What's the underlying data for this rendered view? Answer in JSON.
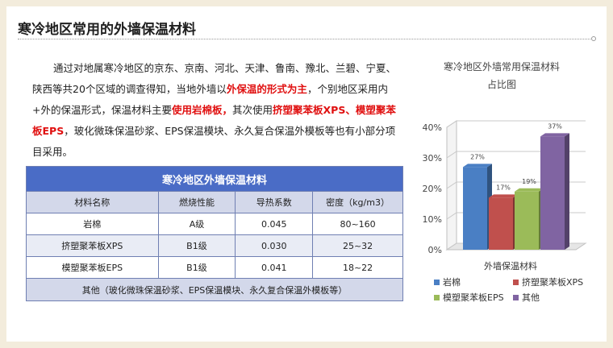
{
  "title": "寒冷地区常用的外墙保温材料",
  "paragraph": {
    "p1": "通过对地属寒冷地区的京东、京南、河北、天津、鲁南、豫北、兰碧、宁夏、陕西等共20个区域的调查得知，当地外墙以",
    "r1": "外保温的形式为主",
    "p2": "，个别地区采用内+外的保温形式，保温材料主要",
    "r2": "使用岩棉板，",
    "p3": "其次使用",
    "r3": "挤塑聚苯板XPS、模塑聚苯板EPS",
    "p4": "，玻化微珠保温砂浆、EPS保温模块、永久复合保温外模板等也有小部分项目采用。"
  },
  "table": {
    "header": "寒冷地区外墙保温材料",
    "columns": [
      "材料名称",
      "燃烧性能",
      "导热系数",
      "密度（kg/m3）"
    ],
    "rows": [
      [
        "岩棉",
        "A级",
        "0.045",
        "80~160"
      ],
      [
        "挤塑聚苯板XPS",
        "B1级",
        "0.030",
        "25~32"
      ],
      [
        "模塑聚苯板EPS",
        "B1级",
        "0.041",
        "18~22"
      ]
    ],
    "footer": "其他（玻化微珠保温砂浆、EPS保温模块、永久复合保温外模板等）"
  },
  "chart_data": {
    "type": "bar",
    "title_line1": "寒冷地区外墙常用保温材料",
    "title_line2": "占比图",
    "xlabel": "外墙保温材料",
    "y_ticks": [
      "0%",
      "10%",
      "20%",
      "30%",
      "40%"
    ],
    "ylim": [
      0,
      40
    ],
    "grid": true,
    "legend_position": "bottom",
    "series": [
      {
        "name": "岩棉",
        "value": 27,
        "label": "27%",
        "color": "#4a7fc4"
      },
      {
        "name": "挤塑聚苯板XPS",
        "value": 17,
        "label": "17%",
        "color": "#c0504d"
      },
      {
        "name": "模塑聚苯板EPS",
        "value": 19,
        "label": "19%",
        "color": "#9bbb59"
      },
      {
        "name": "其他",
        "value": 37,
        "label": "37%",
        "color": "#8064a2"
      }
    ]
  },
  "colors": {
    "accent_red": "#e01010",
    "table_header": "#4a6cc6",
    "table_band": "#d3d8ea"
  }
}
